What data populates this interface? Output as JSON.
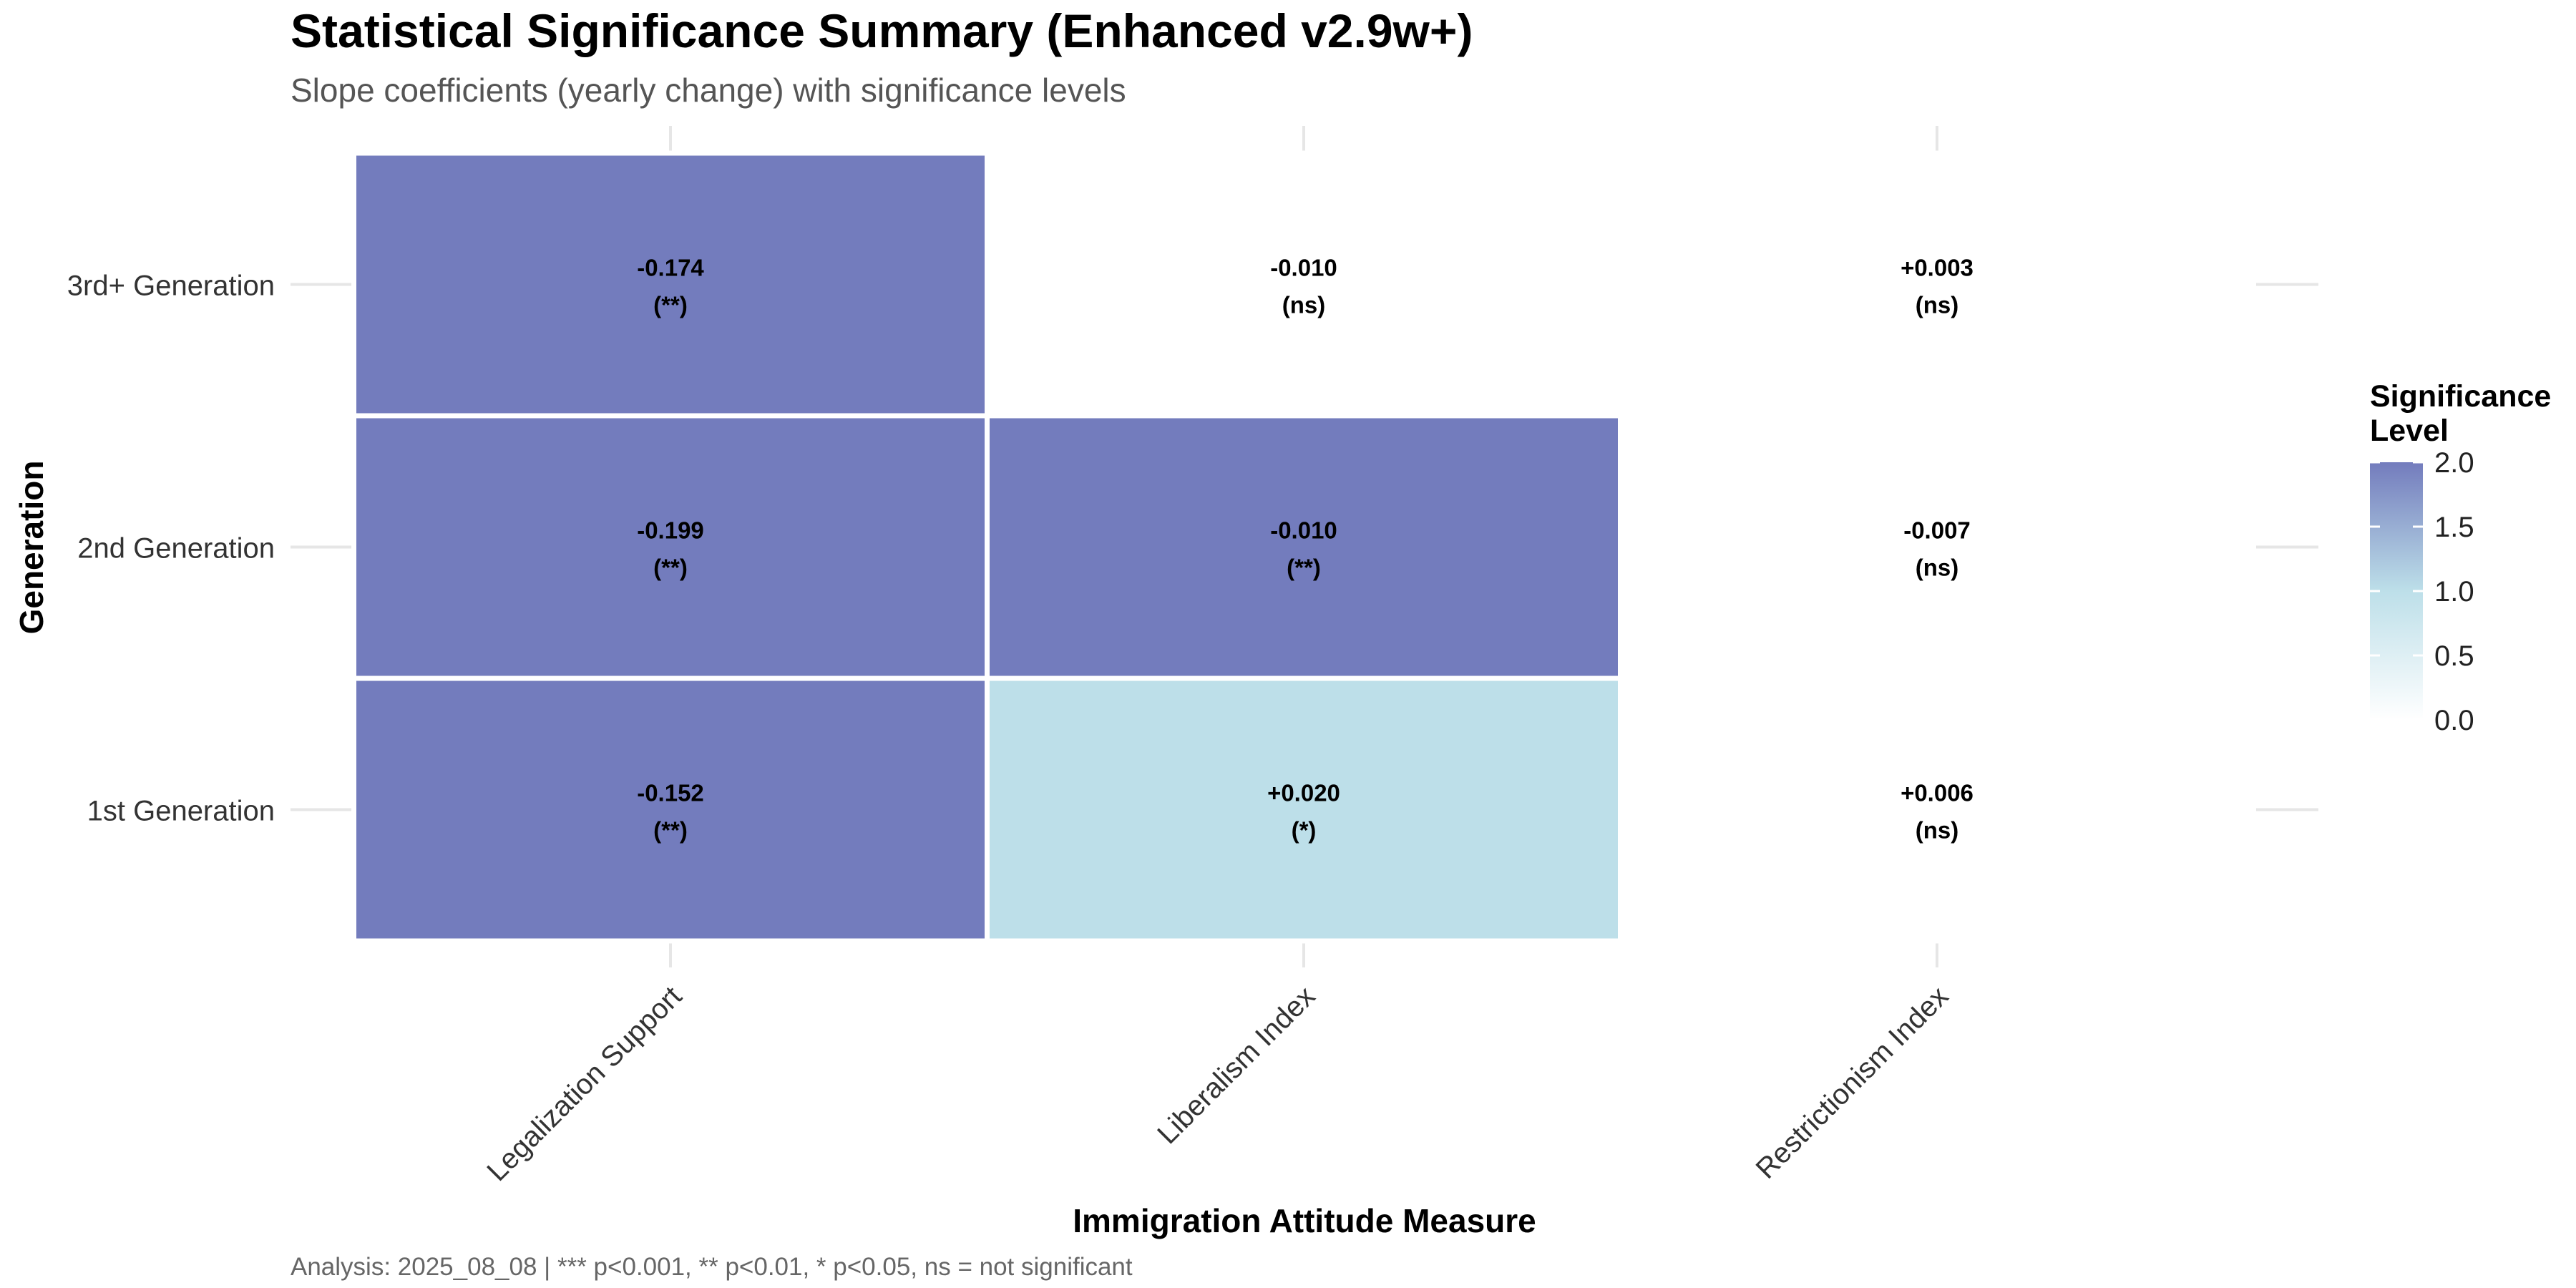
{
  "chart_data": {
    "type": "heatmap",
    "title": "Statistical Significance Summary (Enhanced v2.9w+)",
    "subtitle": "Slope coefficients (yearly change) with significance levels",
    "xlabel": "Immigration Attitude Measure",
    "ylabel": "Generation",
    "x_categories": [
      "Legalization Support",
      "Liberalism Index",
      "Restrictionism Index"
    ],
    "y_categories": [
      "1st Generation",
      "2nd Generation",
      "3rd+ Generation"
    ],
    "cells": [
      {
        "x": "Legalization Support",
        "y": "3rd+ Generation",
        "slope": "-0.174",
        "sig": "(**)",
        "level": 2
      },
      {
        "x": "Liberalism Index",
        "y": "3rd+ Generation",
        "slope": "-0.010",
        "sig": "(ns)",
        "level": 0
      },
      {
        "x": "Restrictionism Index",
        "y": "3rd+ Generation",
        "slope": "+0.003",
        "sig": "(ns)",
        "level": 0
      },
      {
        "x": "Legalization Support",
        "y": "2nd Generation",
        "slope": "-0.199",
        "sig": "(**)",
        "level": 2
      },
      {
        "x": "Liberalism Index",
        "y": "2nd Generation",
        "slope": "-0.010",
        "sig": "(**)",
        "level": 2
      },
      {
        "x": "Restrictionism Index",
        "y": "2nd Generation",
        "slope": "-0.007",
        "sig": "(ns)",
        "level": 0
      },
      {
        "x": "Legalization Support",
        "y": "1st Generation",
        "slope": "-0.152",
        "sig": "(**)",
        "level": 2
      },
      {
        "x": "Liberalism Index",
        "y": "1st Generation",
        "slope": "+0.020",
        "sig": "(*)",
        "level": 1
      },
      {
        "x": "Restrictionism Index",
        "y": "1st Generation",
        "slope": "+0.006",
        "sig": "(ns)",
        "level": 0
      }
    ],
    "legend": {
      "title_lines": [
        "Significance",
        "Level"
      ],
      "range": [
        0,
        2
      ],
      "ticks": [
        "2.0",
        "1.5",
        "1.0",
        "0.5",
        "0.0"
      ],
      "colors": [
        "#ffffff",
        "#bddfe9",
        "#737cbd"
      ]
    },
    "grid": true,
    "caption": "Analysis: 2025_08_08 | *** p<0.001, ** p<0.01, * p<0.05, ns = not significant"
  }
}
